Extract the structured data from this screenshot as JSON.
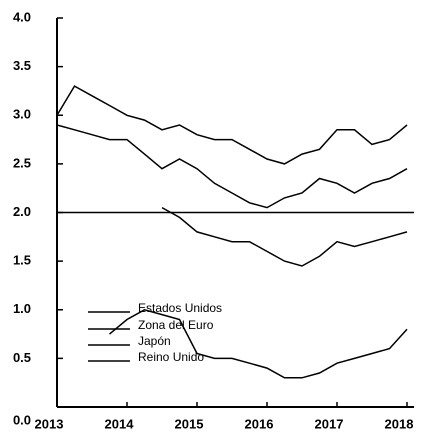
{
  "chart_data": {
    "type": "line",
    "x": [
      2013,
      2013.25,
      2013.5,
      2013.75,
      2014,
      2014.25,
      2014.5,
      2014.75,
      2015,
      2015.25,
      2015.5,
      2015.75,
      2016,
      2016.25,
      2016.5,
      2016.75,
      2017,
      2017.25,
      2017.5,
      2017.75,
      2018
    ],
    "series": [
      {
        "name": "Estados Unidos",
        "color": "#000000",
        "values": [
          2.9,
          2.85,
          2.8,
          2.75,
          2.75,
          2.6,
          2.45,
          2.55,
          2.45,
          2.3,
          2.2,
          2.1,
          2.05,
          2.15,
          2.2,
          2.35,
          2.3,
          2.2,
          2.3,
          2.35,
          2.45
        ]
      },
      {
        "name": "Zona del Euro",
        "color": "#000000",
        "values": [
          null,
          null,
          null,
          null,
          null,
          null,
          2.05,
          1.95,
          1.8,
          1.75,
          1.7,
          1.7,
          1.6,
          1.5,
          1.45,
          1.55,
          1.7,
          1.65,
          1.7,
          1.75,
          1.8
        ]
      },
      {
        "name": "Japón",
        "color": "#000000",
        "values": [
          null,
          null,
          null,
          0.75,
          0.9,
          1.0,
          0.95,
          0.9,
          0.55,
          0.5,
          0.5,
          0.45,
          0.4,
          0.3,
          0.3,
          0.35,
          0.45,
          0.5,
          0.55,
          0.6,
          0.8
        ]
      },
      {
        "name": "Reino Unido",
        "color": "#000000",
        "values": [
          3.0,
          3.3,
          3.2,
          3.1,
          3.0,
          2.95,
          2.85,
          2.9,
          2.8,
          2.75,
          2.75,
          2.65,
          2.55,
          2.5,
          2.6,
          2.65,
          2.85,
          2.85,
          2.7,
          2.75,
          2.9
        ]
      }
    ],
    "hline": 2.0,
    "xlim": [
      2013,
      2018.1
    ],
    "xticks": [
      2013,
      2014,
      2015,
      2016,
      2017,
      2018
    ],
    "ylim": [
      0,
      4
    ],
    "yticks": [
      {
        "value": 0,
        "label": "0.0"
      },
      0.5,
      {
        "value": 1,
        "label": "1.0"
      },
      1.5,
      {
        "value": 2,
        "label": "2.0"
      },
      2.5,
      {
        "value": 3,
        "label": "3.0"
      },
      3.5,
      {
        "value": 4,
        "label": "4.0"
      }
    ]
  }
}
